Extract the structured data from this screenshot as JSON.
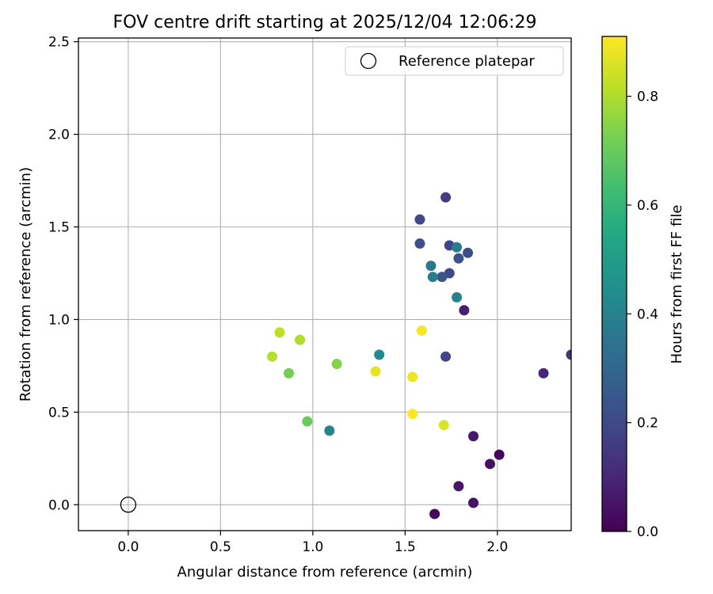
{
  "chart_data": {
    "type": "scatter",
    "title": "FOV centre drift starting at 2025/12/04 12:06:29",
    "xlabel": "Angular distance from reference (arcmin)",
    "ylabel": "Rotation from reference (arcmin)",
    "xlim": [
      -0.27,
      2.4
    ],
    "ylim": [
      -0.14,
      2.52
    ],
    "x_ticks": [
      0.0,
      0.5,
      1.0,
      1.5,
      2.0
    ],
    "x_tick_labels": [
      "0.0",
      "0.5",
      "1.0",
      "1.5",
      "2.0"
    ],
    "y_ticks": [
      0.0,
      0.5,
      1.0,
      1.5,
      2.0,
      2.5
    ],
    "y_tick_labels": [
      "0.0",
      "0.5",
      "1.0",
      "1.5",
      "2.0",
      "2.5"
    ],
    "grid": true,
    "legend": {
      "location": "top-right",
      "entries": [
        {
          "label": "Reference platepar",
          "marker": "open-circle"
        }
      ]
    },
    "reference_point": {
      "x": 0.0,
      "y": 0.0
    },
    "colorbar": {
      "label": "Hours from first FF file",
      "colormap": "viridis",
      "range": [
        0.0,
        0.91
      ],
      "ticks": [
        0.0,
        0.2,
        0.4,
        0.6,
        0.8
      ],
      "tick_labels": [
        "0.0",
        "0.2",
        "0.4",
        "0.6",
        "0.8"
      ]
    },
    "points": [
      {
        "x": 1.66,
        "y": -0.05,
        "hours": 0.02
      },
      {
        "x": 1.87,
        "y": 0.01,
        "hours": 0.05
      },
      {
        "x": 1.79,
        "y": 0.1,
        "hours": 0.06
      },
      {
        "x": 1.96,
        "y": 0.22,
        "hours": 0.04
      },
      {
        "x": 2.01,
        "y": 0.27,
        "hours": 0.01
      },
      {
        "x": 1.87,
        "y": 0.37,
        "hours": 0.06
      },
      {
        "x": 2.25,
        "y": 0.71,
        "hours": 0.1
      },
      {
        "x": 2.4,
        "y": 0.81,
        "hours": 0.13
      },
      {
        "x": 1.82,
        "y": 1.05,
        "hours": 0.08
      },
      {
        "x": 1.72,
        "y": 0.8,
        "hours": 0.19
      },
      {
        "x": 1.72,
        "y": 1.66,
        "hours": 0.16
      },
      {
        "x": 1.58,
        "y": 1.54,
        "hours": 0.2
      },
      {
        "x": 1.58,
        "y": 1.41,
        "hours": 0.22
      },
      {
        "x": 1.74,
        "y": 1.4,
        "hours": 0.18
      },
      {
        "x": 1.84,
        "y": 1.36,
        "hours": 0.21
      },
      {
        "x": 1.79,
        "y": 1.33,
        "hours": 0.23
      },
      {
        "x": 1.74,
        "y": 1.25,
        "hours": 0.2
      },
      {
        "x": 1.7,
        "y": 1.23,
        "hours": 0.24
      },
      {
        "x": 1.78,
        "y": 1.39,
        "hours": 0.38
      },
      {
        "x": 1.64,
        "y": 1.29,
        "hours": 0.36
      },
      {
        "x": 1.65,
        "y": 1.23,
        "hours": 0.39
      },
      {
        "x": 1.78,
        "y": 1.12,
        "hours": 0.4
      },
      {
        "x": 1.36,
        "y": 0.81,
        "hours": 0.43
      },
      {
        "x": 1.09,
        "y": 0.4,
        "hours": 0.41
      },
      {
        "x": 0.97,
        "y": 0.45,
        "hours": 0.7
      },
      {
        "x": 0.87,
        "y": 0.71,
        "hours": 0.72
      },
      {
        "x": 1.13,
        "y": 0.76,
        "hours": 0.74
      },
      {
        "x": 0.78,
        "y": 0.8,
        "hours": 0.81
      },
      {
        "x": 0.82,
        "y": 0.93,
        "hours": 0.82
      },
      {
        "x": 0.93,
        "y": 0.89,
        "hours": 0.8
      },
      {
        "x": 1.34,
        "y": 0.72,
        "hours": 0.88
      },
      {
        "x": 1.54,
        "y": 0.69,
        "hours": 0.89
      },
      {
        "x": 1.59,
        "y": 0.94,
        "hours": 0.9
      },
      {
        "x": 1.54,
        "y": 0.49,
        "hours": 0.91
      },
      {
        "x": 1.71,
        "y": 0.43,
        "hours": 0.86
      }
    ]
  }
}
